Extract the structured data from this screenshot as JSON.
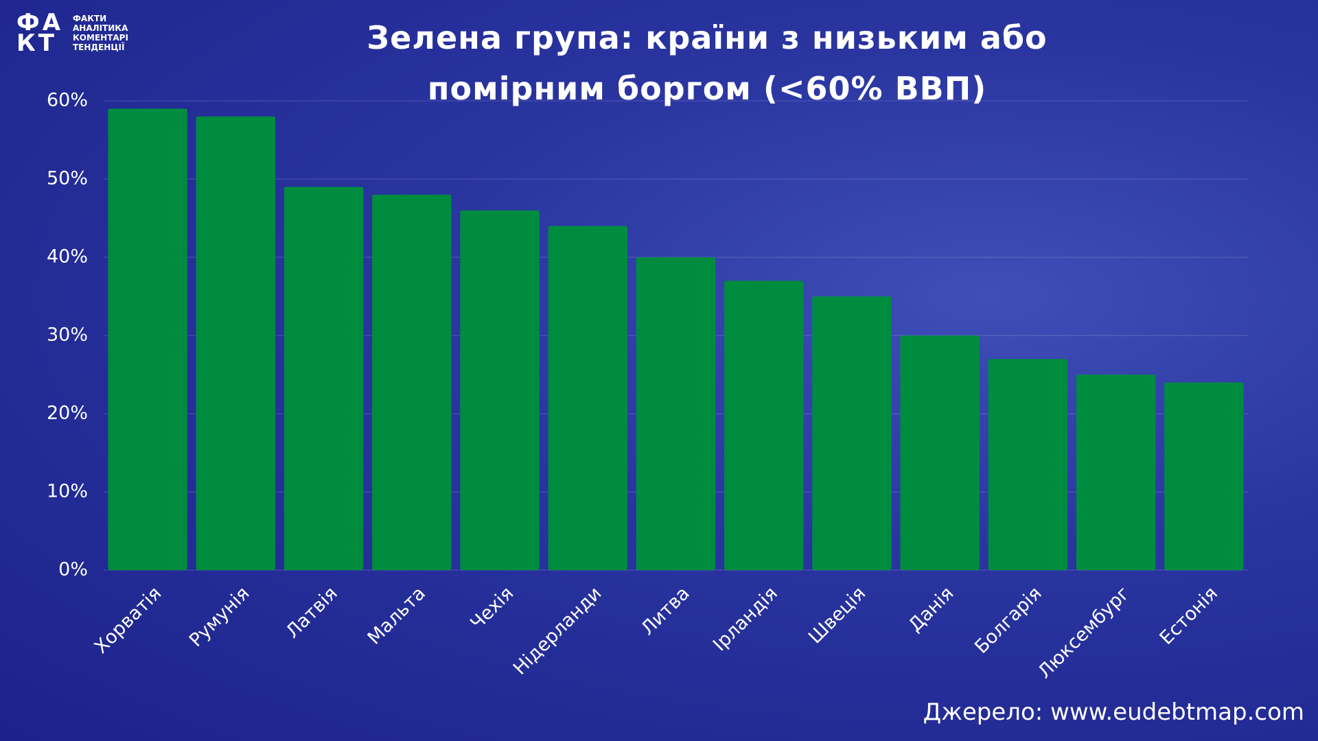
{
  "logo": {
    "mark": "ФАКТ",
    "lines": [
      "ФАКТИ",
      "АНАЛІТИКА",
      "КОМЕНТАРІ",
      "ТЕНДЕНЦІЇ"
    ]
  },
  "chart_data": {
    "type": "bar",
    "title": "Зелена група: країни з низьким або помірним боргом (<60% ВВП)",
    "categories": [
      "Хорватія",
      "Румунія",
      "Латвія",
      "Мальта",
      "Чехія",
      "Нідерланди",
      "Литва",
      "Ірландія",
      "Швеція",
      "Данія",
      "Болгарія",
      "Люксембург",
      "Естонія"
    ],
    "values": [
      59,
      58,
      49,
      48,
      46,
      44,
      40,
      37,
      35,
      30,
      27,
      25,
      24
    ],
    "color": "#008c3f",
    "ylim": [
      0,
      60
    ],
    "yticks": [
      {
        "value": 0,
        "label": "0%"
      },
      {
        "value": 10,
        "label": "10%"
      },
      {
        "value": 20,
        "label": "20%"
      },
      {
        "value": 30,
        "label": "30%"
      },
      {
        "value": 40,
        "label": "40%"
      },
      {
        "value": 50,
        "label": "50%"
      },
      {
        "value": 60,
        "label": "60%"
      }
    ],
    "grid": true,
    "source": "Джерело: www.eudebtmap.com"
  }
}
